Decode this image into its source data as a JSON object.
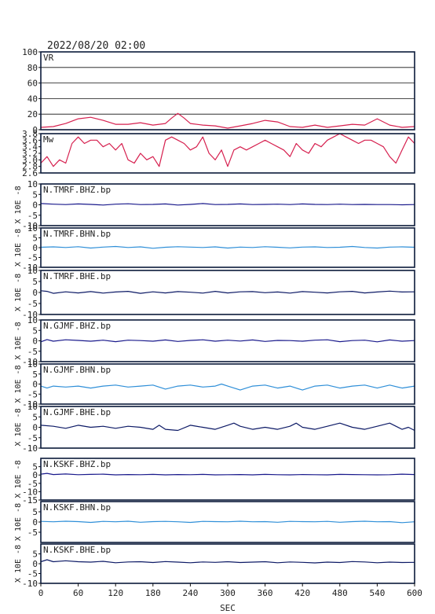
{
  "header": {
    "datetime": "2022/08/20 02:00"
  },
  "chart_data": {
    "type": "line",
    "x_range": [
      0,
      600
    ],
    "x_ticks": [
      0,
      60,
      120,
      180,
      240,
      300,
      360,
      420,
      480,
      540,
      600
    ],
    "xlabel": "SEC",
    "colors": {
      "vr": "#d6204f",
      "mw": "#d6204f",
      "bhz": "#1a1a8c",
      "bhn": "#2f8fd8",
      "bhe": "#0d1a66",
      "frame": "#0b1a3a"
    },
    "panels": [
      {
        "id": "vr",
        "label": "VR",
        "type": "line",
        "ylim": [
          0,
          100
        ],
        "yticks": [
          "100",
          "80",
          "60",
          "40",
          "20",
          "0"
        ],
        "ytick_values": [
          100,
          80,
          60,
          40,
          20,
          0
        ],
        "grid": true,
        "ylabel": "",
        "x": [
          0,
          20,
          40,
          60,
          80,
          100,
          120,
          140,
          160,
          180,
          200,
          210,
          220,
          230,
          240,
          260,
          280,
          300,
          320,
          340,
          360,
          380,
          400,
          420,
          440,
          460,
          480,
          500,
          520,
          540,
          560,
          580,
          600
        ],
        "y": [
          3,
          4,
          8,
          14,
          16,
          12,
          7,
          7,
          9,
          6,
          8,
          15,
          21,
          15,
          8,
          6,
          5,
          2,
          5,
          8,
          12,
          10,
          4,
          3,
          6,
          3,
          5,
          7,
          6,
          14,
          6,
          3,
          4
        ]
      },
      {
        "id": "mw",
        "label": "Mw",
        "type": "line",
        "ylim": [
          2.6,
          3.8
        ],
        "yticks": [
          "3.8",
          "3.6",
          "3.4",
          "3.2",
          "3.0",
          "2.8",
          "2.6"
        ],
        "ytick_values": [
          3.8,
          3.6,
          3.4,
          3.2,
          3.0,
          2.8,
          2.6
        ],
        "grid": false,
        "ylabel": "",
        "x": [
          0,
          10,
          20,
          30,
          40,
          50,
          60,
          70,
          80,
          90,
          100,
          110,
          120,
          130,
          140,
          150,
          160,
          170,
          180,
          190,
          200,
          210,
          220,
          230,
          240,
          250,
          260,
          270,
          280,
          290,
          300,
          310,
          320,
          330,
          340,
          350,
          360,
          370,
          380,
          390,
          400,
          410,
          420,
          430,
          440,
          450,
          460,
          470,
          480,
          490,
          500,
          510,
          520,
          530,
          540,
          550,
          560,
          570,
          580,
          590,
          600
        ],
        "y": [
          2.9,
          3.1,
          2.8,
          3.0,
          2.9,
          3.5,
          3.7,
          3.5,
          3.6,
          3.6,
          3.4,
          3.5,
          3.3,
          3.5,
          3.0,
          2.9,
          3.2,
          3.0,
          3.1,
          2.8,
          3.6,
          3.7,
          3.6,
          3.5,
          3.3,
          3.4,
          3.7,
          3.2,
          3.0,
          3.3,
          2.8,
          3.3,
          3.4,
          3.3,
          3.4,
          3.5,
          3.6,
          3.5,
          3.4,
          3.3,
          3.1,
          3.5,
          3.3,
          3.2,
          3.5,
          3.4,
          3.6,
          3.7,
          3.8,
          3.7,
          3.6,
          3.5,
          3.6,
          3.6,
          3.5,
          3.4,
          3.1,
          2.9,
          3.3,
          3.7,
          3.5
        ]
      },
      {
        "id": "tmrf_bhz",
        "label": "N.TMRF.BHZ.bp",
        "type": "line",
        "ylim": [
          -10,
          10
        ],
        "yticks": [
          "10",
          "5",
          "0",
          "-5",
          "-10"
        ],
        "ytick_values": [
          10,
          5,
          0,
          -5,
          -10
        ],
        "grid": false,
        "ylabel": "X 10E -8",
        "x": [
          0,
          20,
          40,
          60,
          80,
          100,
          120,
          140,
          160,
          180,
          200,
          220,
          240,
          260,
          280,
          300,
          320,
          340,
          360,
          380,
          400,
          420,
          440,
          460,
          480,
          500,
          520,
          540,
          560,
          580,
          600
        ],
        "y": [
          0.6,
          0.3,
          0.1,
          0.4,
          0.2,
          -0.1,
          0.3,
          0.5,
          0.1,
          0.2,
          0.4,
          -0.1,
          0.2,
          0.6,
          0.1,
          0.2,
          0.4,
          0.1,
          0.2,
          0.3,
          0.1,
          0.4,
          0.2,
          0.1,
          0.3,
          0.1,
          0.2,
          0.1,
          0.1,
          0.0,
          0.1
        ]
      },
      {
        "id": "tmrf_bhn",
        "label": "N.TMRF.BHN.bp",
        "type": "line",
        "ylim": [
          -10,
          10
        ],
        "yticks": [
          "10",
          "5",
          "0",
          "-5",
          "-10"
        ],
        "ytick_values": [
          10,
          5,
          0,
          -5,
          -10
        ],
        "grid": false,
        "ylabel": "X 10E -8",
        "x": [
          0,
          20,
          40,
          60,
          80,
          100,
          120,
          140,
          160,
          180,
          200,
          220,
          240,
          260,
          280,
          300,
          320,
          340,
          360,
          380,
          400,
          420,
          440,
          460,
          480,
          500,
          520,
          540,
          560,
          580,
          600
        ],
        "y": [
          0.2,
          0.4,
          0.1,
          0.5,
          -0.2,
          0.3,
          0.6,
          0.1,
          0.4,
          -0.3,
          0.2,
          0.5,
          0.3,
          0.1,
          0.4,
          -0.2,
          0.3,
          0.1,
          0.5,
          0.2,
          -0.1,
          0.3,
          0.4,
          0.1,
          0.2,
          0.6,
          0.1,
          -0.2,
          0.3,
          0.4,
          0.2
        ]
      },
      {
        "id": "tmrf_bhe",
        "label": "N.TMRF.BHE.bp",
        "type": "line",
        "ylim": [
          -10,
          10
        ],
        "yticks": [
          "10",
          "5",
          "0",
          "-5",
          "-10"
        ],
        "ytick_values": [
          10,
          5,
          0,
          -5,
          -10
        ],
        "grid": false,
        "ylabel": "X 10E -8",
        "x": [
          0,
          10,
          20,
          40,
          60,
          80,
          100,
          120,
          140,
          160,
          180,
          200,
          220,
          240,
          260,
          280,
          300,
          320,
          340,
          360,
          380,
          400,
          420,
          440,
          460,
          480,
          500,
          520,
          540,
          560,
          580,
          600
        ],
        "y": [
          0.8,
          0.5,
          -0.4,
          0.3,
          -0.2,
          0.4,
          -0.3,
          0.2,
          0.5,
          -0.4,
          0.3,
          -0.2,
          0.4,
          0.1,
          -0.3,
          0.5,
          -0.2,
          0.3,
          0.4,
          -0.1,
          0.2,
          -0.3,
          0.4,
          0.1,
          -0.2,
          0.3,
          0.5,
          -0.2,
          0.2,
          0.6,
          0.2,
          0.3
        ]
      },
      {
        "id": "gjmf_bhz",
        "label": "N.GJMF.BHZ.bp",
        "type": "line",
        "ylim": [
          -10,
          10
        ],
        "yticks": [
          "10",
          "5",
          "0",
          "-5",
          "-10"
        ],
        "ytick_values": [
          10,
          5,
          0,
          -5,
          -10
        ],
        "grid": false,
        "ylabel": "X 10E -8",
        "x": [
          0,
          10,
          20,
          40,
          60,
          80,
          100,
          120,
          140,
          160,
          180,
          200,
          220,
          240,
          260,
          280,
          300,
          320,
          340,
          360,
          380,
          400,
          420,
          440,
          460,
          480,
          500,
          520,
          540,
          560,
          580,
          600
        ],
        "y": [
          -0.5,
          0.6,
          -0.2,
          0.5,
          0.2,
          -0.2,
          0.3,
          -0.4,
          0.3,
          0.1,
          -0.2,
          0.4,
          -0.3,
          0.2,
          0.5,
          -0.2,
          0.3,
          -0.1,
          0.4,
          -0.3,
          0.2,
          0.1,
          -0.2,
          0.3,
          0.5,
          -0.4,
          0.1,
          0.3,
          -0.5,
          0.4,
          -0.2,
          0.1
        ]
      },
      {
        "id": "gjmf_bhn",
        "label": "N.GJMF.BHN.bp",
        "type": "line",
        "ylim": [
          -10,
          10
        ],
        "yticks": [
          "10",
          "5",
          "0",
          "-5",
          "-10"
        ],
        "ytick_values": [
          10,
          5,
          0,
          -5,
          -10
        ],
        "grid": false,
        "ylabel": "X 10E -8",
        "x": [
          0,
          10,
          20,
          40,
          60,
          80,
          100,
          120,
          140,
          160,
          180,
          200,
          220,
          240,
          260,
          280,
          290,
          300,
          320,
          340,
          360,
          380,
          400,
          420,
          440,
          460,
          480,
          500,
          520,
          540,
          560,
          580,
          600
        ],
        "y": [
          -1,
          -2,
          -1,
          -1.5,
          -1,
          -2,
          -1,
          -0.5,
          -1.5,
          -1,
          -0.5,
          -2.5,
          -1,
          -0.5,
          -1.5,
          -1,
          0,
          -1,
          -3,
          -1,
          -0.5,
          -2,
          -1,
          -3,
          -1,
          -0.5,
          -2,
          -1,
          -0.5,
          -2,
          -0.5,
          -2,
          -1
        ]
      },
      {
        "id": "gjmf_bhe",
        "label": "N.GJMF.BHE.bp",
        "type": "line",
        "ylim": [
          -10,
          10
        ],
        "yticks": [
          "10",
          "5",
          "0",
          "-5",
          "-10"
        ],
        "ytick_values": [
          10,
          5,
          0,
          -5,
          -10
        ],
        "grid": false,
        "ylabel": "X 10E -8",
        "x": [
          0,
          20,
          40,
          60,
          80,
          100,
          120,
          140,
          160,
          180,
          190,
          200,
          220,
          240,
          260,
          280,
          300,
          310,
          320,
          340,
          360,
          380,
          400,
          410,
          420,
          440,
          460,
          480,
          500,
          520,
          540,
          560,
          580,
          590,
          600
        ],
        "y": [
          1,
          0.5,
          -0.5,
          1,
          0,
          0.5,
          -0.5,
          0.5,
          0,
          -1,
          1,
          -1,
          -1.5,
          1,
          0,
          -1,
          1,
          2,
          0.5,
          -1,
          0,
          -1,
          0.5,
          2,
          0,
          -1,
          0.5,
          2,
          0,
          -1,
          0.5,
          2,
          -1,
          0,
          -1.5
        ]
      },
      {
        "id": "kskf_bhz",
        "label": "N.KSKF.BHZ.bp",
        "type": "line",
        "ylim": [
          -15,
          10
        ],
        "yticks": [
          "5",
          "0",
          "-5",
          "-10",
          "-15"
        ],
        "ytick_values": [
          5,
          0,
          -5,
          -10,
          -15
        ],
        "grid": false,
        "ylabel": "X 10E -8",
        "x": [
          0,
          10,
          20,
          40,
          60,
          80,
          100,
          120,
          140,
          160,
          180,
          200,
          220,
          240,
          260,
          280,
          300,
          320,
          340,
          360,
          380,
          400,
          420,
          440,
          460,
          480,
          500,
          520,
          540,
          560,
          580,
          600
        ],
        "y": [
          0.5,
          1,
          0.3,
          0.6,
          0.2,
          0.4,
          0.5,
          0.1,
          0.3,
          0.2,
          0.4,
          0.1,
          0.3,
          0.2,
          0.4,
          0.1,
          0.2,
          0.3,
          0.1,
          0.4,
          0.2,
          0.1,
          0.3,
          0.2,
          0.1,
          0.4,
          0.3,
          0.2,
          0.1,
          0.2,
          0.5,
          0.3
        ]
      },
      {
        "id": "kskf_bhn",
        "label": "N.KSKF.BHN.bp",
        "type": "line",
        "ylim": [
          -10,
          10
        ],
        "yticks": [
          "5",
          "0",
          "-5"
        ],
        "ytick_values": [
          5,
          0,
          -5
        ],
        "grid": false,
        "ylabel": "X 10E -8",
        "x": [
          0,
          20,
          40,
          60,
          80,
          100,
          120,
          140,
          160,
          180,
          200,
          220,
          240,
          260,
          280,
          300,
          320,
          340,
          360,
          380,
          400,
          420,
          440,
          460,
          480,
          500,
          520,
          540,
          560,
          580,
          600
        ],
        "y": [
          0.3,
          0.1,
          0.4,
          0.2,
          -0.2,
          0.3,
          0.1,
          0.4,
          -0.1,
          0.2,
          0.3,
          0.1,
          -0.2,
          0.3,
          0.2,
          0.1,
          0.4,
          0.1,
          0.2,
          -0.1,
          0.3,
          0.2,
          0.1,
          0.3,
          -0.1,
          0.2,
          0.4,
          0.1,
          0.2,
          -0.3,
          0.1
        ]
      },
      {
        "id": "kskf_bhe",
        "label": "N.KSKF.BHE.bp",
        "type": "line",
        "ylim": [
          -10,
          10
        ],
        "yticks": [
          "5",
          "0",
          "-5",
          "-10"
        ],
        "ytick_values": [
          5,
          0,
          -5,
          -10
        ],
        "grid": false,
        "ylabel": "X 10E -8",
        "x": [
          0,
          10,
          20,
          40,
          60,
          80,
          100,
          120,
          140,
          160,
          180,
          200,
          220,
          240,
          260,
          280,
          300,
          320,
          340,
          360,
          380,
          400,
          420,
          440,
          460,
          480,
          500,
          520,
          540,
          560,
          580,
          600
        ],
        "y": [
          1,
          2,
          1,
          1.5,
          1,
          0.8,
          1.2,
          0.5,
          0.9,
          1,
          0.6,
          1.1,
          0.8,
          0.5,
          0.9,
          0.7,
          1,
          0.6,
          0.8,
          1,
          0.5,
          0.9,
          0.7,
          0.4,
          0.8,
          0.6,
          1.1,
          0.9,
          0.5,
          0.8,
          0.6,
          0.7
        ]
      }
    ]
  }
}
